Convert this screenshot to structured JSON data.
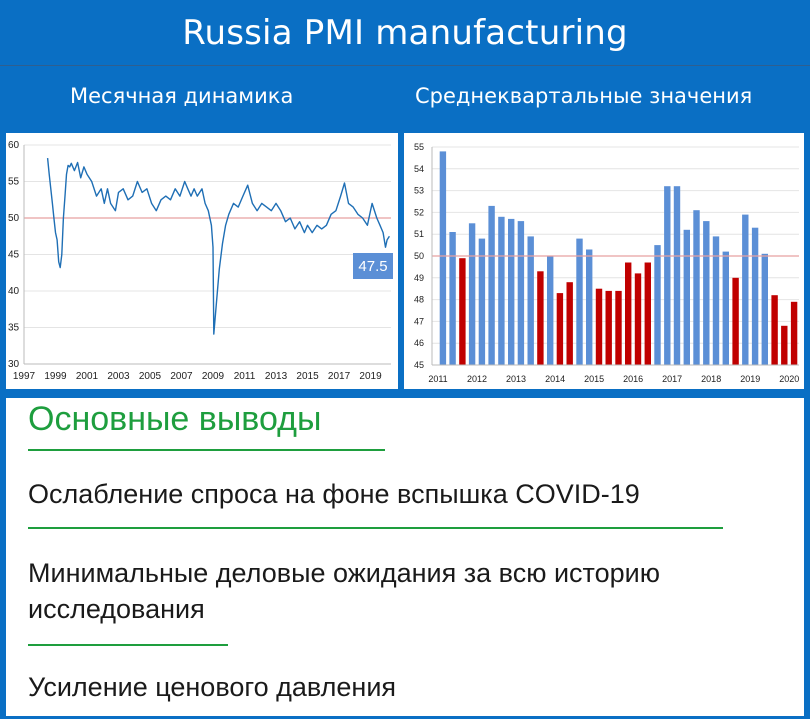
{
  "header": {
    "title": "Russia PMI manufacturing",
    "left_subtitle": "Месячная динамика",
    "right_subtitle": "Среднеквартальные значения"
  },
  "colors": {
    "background": "#0a6fc4",
    "line": "#1f6fb5",
    "bar_up": "#5b8fd6",
    "bar_down": "#c00000",
    "reference_line": "#e8a0a0",
    "heading_green": "#1e9e3e"
  },
  "chart_data": [
    {
      "type": "line",
      "x_ticks": [
        "1997",
        "1999",
        "2001",
        "2003",
        "2005",
        "2007",
        "2009",
        "2011",
        "2013",
        "2015",
        "2017",
        "2019"
      ],
      "y_ticks": [
        30,
        35,
        40,
        45,
        50,
        55,
        60
      ],
      "ylim": [
        30,
        60
      ],
      "xlim": [
        1997,
        2020.3
      ],
      "reference_line": 50,
      "grid": "horizontal",
      "last_value_label": "47.5",
      "series": [
        {
          "points": [
            [
              1998.5,
              58.2
            ],
            [
              1998.6,
              56
            ],
            [
              1998.7,
              54
            ],
            [
              1998.8,
              52
            ],
            [
              1998.9,
              50
            ],
            [
              1999.0,
              48
            ],
            [
              1999.1,
              47
            ],
            [
              1999.2,
              44
            ],
            [
              1999.3,
              43.2
            ],
            [
              1999.4,
              45
            ],
            [
              1999.5,
              50
            ],
            [
              1999.6,
              53
            ],
            [
              1999.7,
              56
            ],
            [
              1999.8,
              57.2
            ],
            [
              1999.9,
              57
            ],
            [
              2000.0,
              57.5
            ],
            [
              2000.2,
              56.5
            ],
            [
              2000.4,
              57.6
            ],
            [
              2000.6,
              55.5
            ],
            [
              2000.8,
              57
            ],
            [
              2001.0,
              56
            ],
            [
              2001.3,
              55
            ],
            [
              2001.6,
              53
            ],
            [
              2001.9,
              54
            ],
            [
              2002.1,
              52
            ],
            [
              2002.3,
              54
            ],
            [
              2002.5,
              52
            ],
            [
              2002.8,
              51
            ],
            [
              2003.0,
              53.5
            ],
            [
              2003.3,
              54
            ],
            [
              2003.6,
              52.5
            ],
            [
              2003.9,
              53
            ],
            [
              2004.2,
              55
            ],
            [
              2004.5,
              53.5
            ],
            [
              2004.8,
              54
            ],
            [
              2005.1,
              52
            ],
            [
              2005.4,
              51
            ],
            [
              2005.7,
              52.5
            ],
            [
              2006.0,
              53
            ],
            [
              2006.3,
              52.5
            ],
            [
              2006.6,
              54
            ],
            [
              2006.9,
              53
            ],
            [
              2007.2,
              55
            ],
            [
              2007.4,
              54
            ],
            [
              2007.6,
              53
            ],
            [
              2007.8,
              54
            ],
            [
              2008.0,
              53
            ],
            [
              2008.3,
              54
            ],
            [
              2008.5,
              52
            ],
            [
              2008.7,
              51
            ],
            [
              2008.9,
              49
            ],
            [
              2009.0,
              46
            ],
            [
              2009.05,
              34.1
            ],
            [
              2009.2,
              38
            ],
            [
              2009.4,
              43
            ],
            [
              2009.6,
              46.5
            ],
            [
              2009.8,
              49
            ],
            [
              2010.0,
              50.5
            ],
            [
              2010.3,
              52
            ],
            [
              2010.6,
              51.5
            ],
            [
              2010.9,
              53
            ],
            [
              2011.2,
              54.5
            ],
            [
              2011.5,
              52
            ],
            [
              2011.8,
              51
            ],
            [
              2012.1,
              52
            ],
            [
              2012.4,
              51.5
            ],
            [
              2012.7,
              51
            ],
            [
              2013.0,
              52
            ],
            [
              2013.3,
              51
            ],
            [
              2013.6,
              49.5
            ],
            [
              2013.9,
              50
            ],
            [
              2014.2,
              48.5
            ],
            [
              2014.5,
              49.5
            ],
            [
              2014.8,
              48
            ],
            [
              2015.0,
              49
            ],
            [
              2015.3,
              48
            ],
            [
              2015.6,
              49
            ],
            [
              2015.9,
              48.5
            ],
            [
              2016.2,
              49
            ],
            [
              2016.5,
              50.5
            ],
            [
              2016.8,
              51
            ],
            [
              2017.1,
              53
            ],
            [
              2017.35,
              54.8
            ],
            [
              2017.6,
              52
            ],
            [
              2017.9,
              51.5
            ],
            [
              2018.2,
              50.5
            ],
            [
              2018.5,
              50
            ],
            [
              2018.8,
              49
            ],
            [
              2019.1,
              52
            ],
            [
              2019.4,
              50
            ],
            [
              2019.6,
              49
            ],
            [
              2019.8,
              48
            ],
            [
              2019.95,
              46
            ],
            [
              2020.05,
              47
            ],
            [
              2020.2,
              47.5
            ]
          ]
        }
      ]
    },
    {
      "type": "bar",
      "x_ticks": [
        "2011",
        "2012",
        "2013",
        "2014",
        "2015",
        "2016",
        "2017",
        "2018",
        "2019",
        "2020"
      ],
      "y_ticks": [
        45,
        46,
        47,
        48,
        49,
        50,
        51,
        52,
        53,
        54,
        55
      ],
      "ylim": [
        45,
        55
      ],
      "reference_line": 50,
      "grid": "horizontal",
      "values": [
        54.8,
        51.1,
        49.9,
        51.5,
        50.8,
        52.3,
        51.8,
        51.7,
        51.6,
        50.9,
        49.3,
        50.0,
        48.3,
        48.8,
        50.8,
        50.3,
        48.5,
        48.4,
        48.4,
        49.7,
        49.2,
        49.7,
        50.5,
        53.2,
        53.2,
        51.2,
        52.1,
        51.6,
        50.9,
        50.2,
        49.0,
        51.9,
        51.3,
        50.1,
        48.2,
        46.8,
        47.9
      ]
    }
  ],
  "conclusions": {
    "heading": "Основные выводы",
    "points": [
      "Ослабление спроса на фоне вспышка COVID-19",
      "Минимальные деловые ожидания за всю историю исследования",
      "Усиление ценового давления"
    ]
  }
}
